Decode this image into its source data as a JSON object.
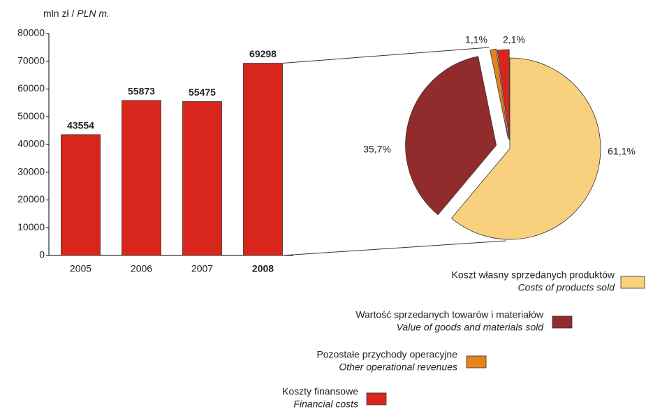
{
  "chart_data": [
    {
      "type": "bar",
      "y_label": "mln zł /",
      "y_label_en": "PLN m.",
      "categories": [
        "2005",
        "2006",
        "2007",
        "2008"
      ],
      "values": [
        43554,
        55873,
        55475,
        69298
      ],
      "color": "#d9261c",
      "ylim": [
        0,
        80000
      ],
      "yticks": [
        0,
        10000,
        20000,
        30000,
        40000,
        50000,
        60000,
        70000,
        80000
      ]
    },
    {
      "type": "pie",
      "labels": [
        "Koszt własny sprzedanych produktów",
        "Wartość sprzedanych towarów i materiałów",
        "Pozostałe przychody operacyjne",
        "Koszty finansowe"
      ],
      "labels_en": [
        "Costs of products sold",
        "Value of goods and materials sold",
        "Other operational revenues",
        "Financial costs"
      ],
      "values": [
        61.1,
        35.7,
        1.1,
        2.1
      ],
      "value_labels": [
        "61,1%",
        "35,7%",
        "1,1%",
        "2,1%"
      ],
      "colors": [
        "#f9d17e",
        "#922b2b",
        "#e8821e",
        "#d9261c"
      ]
    }
  ]
}
